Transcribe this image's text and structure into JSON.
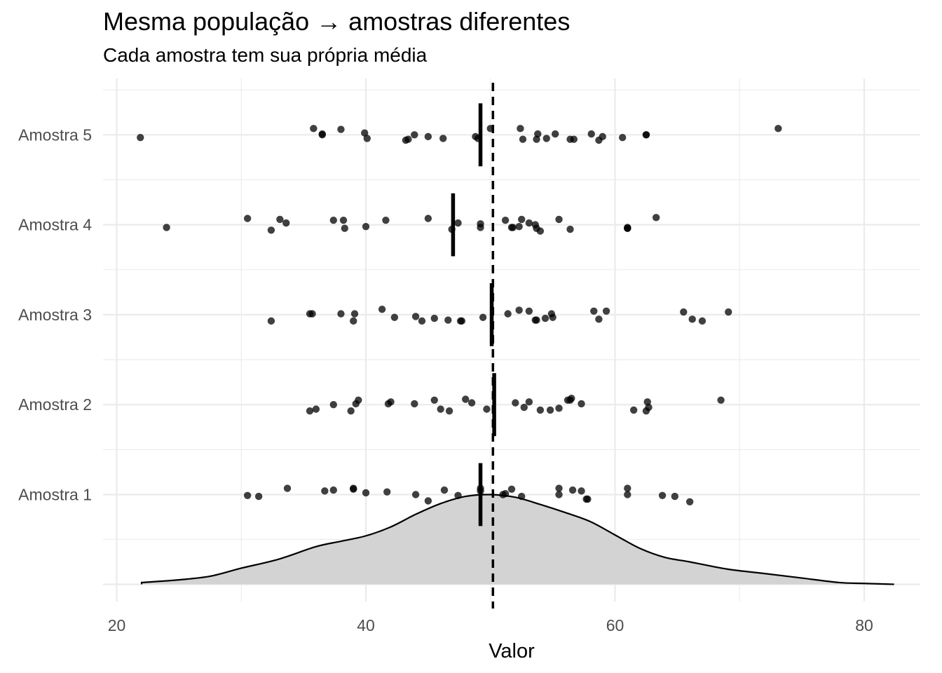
{
  "title": "Mesma população → amostras diferentes",
  "subtitle": "Cada amostra tem sua própria média",
  "chart_data": {
    "type": "scatter",
    "title": "Mesma população → amostras diferentes",
    "subtitle": "Cada amostra tem sua própria média",
    "xlabel": "Valor",
    "ylabel": "",
    "xlim": [
      18.2,
      84.2
    ],
    "x_ticks": [
      20,
      40,
      60,
      80
    ],
    "x_tick_labels": [
      "20",
      "40",
      "60",
      "80"
    ],
    "categories": [
      "Amostra 1",
      "Amostra 2",
      "Amostra 3",
      "Amostra 4",
      "Amostra 5"
    ],
    "grid": true,
    "population_mean": 50.2,
    "point_color": "#000000",
    "point_opacity": 0.75,
    "density_fill": "#d3d3d3",
    "series": [
      {
        "values": [
          30.5,
          31.4,
          33.7,
          36.7,
          37.4,
          39.0,
          39.0,
          40.0,
          41.7,
          44.0,
          45.0,
          46.3,
          47.4,
          49.2,
          49.2,
          51.0,
          51.2,
          51.7,
          52.5,
          55.5,
          55.5,
          56.6,
          57.3,
          57.7,
          57.8,
          61.0,
          61.0,
          63.8,
          64.8,
          66.0
        ],
        "jitter": [
          -0.01,
          -0.02,
          0.07,
          0.04,
          0.05,
          0.07,
          0.06,
          0.02,
          0.03,
          0.0,
          -0.07,
          0.05,
          -0.01,
          0.07,
          0.04,
          0.0,
          0.01,
          0.06,
          -0.02,
          0.07,
          0.0,
          0.05,
          0.04,
          -0.05,
          -0.05,
          0.07,
          0.0,
          -0.01,
          -0.02,
          -0.08
        ],
        "mean": 49.2
      },
      {
        "values": [
          35.5,
          36.0,
          37.4,
          38.8,
          39.2,
          39.4,
          41.8,
          42.0,
          43.9,
          45.5,
          46.0,
          46.7,
          48.0,
          48.5,
          49.7,
          52.0,
          52.7,
          53.1,
          54.0,
          54.8,
          55.5,
          56.2,
          56.4,
          56.5,
          57.3,
          61.5,
          62.5,
          62.6,
          62.7,
          68.5
        ],
        "jitter": [
          -0.07,
          -0.05,
          0.0,
          -0.07,
          0.01,
          0.05,
          0.01,
          0.03,
          0.01,
          0.05,
          -0.05,
          -0.07,
          0.06,
          0.02,
          -0.05,
          0.02,
          -0.03,
          0.03,
          -0.06,
          -0.06,
          -0.04,
          0.05,
          0.05,
          0.07,
          0.01,
          -0.06,
          -0.07,
          0.03,
          -0.03,
          0.05
        ],
        "mean": 50.3
      },
      {
        "values": [
          32.4,
          35.5,
          35.7,
          38.0,
          39.0,
          39.1,
          41.3,
          42.3,
          44.0,
          44.5,
          45.5,
          46.6,
          47.6,
          47.7,
          49.4,
          51.4,
          52.3,
          53.1,
          53.6,
          53.7,
          54.4,
          54.9,
          55.0,
          58.3,
          58.7,
          59.3,
          65.5,
          66.2,
          67.0,
          69.1
        ],
        "jitter": [
          -0.07,
          0.01,
          0.01,
          0.01,
          -0.07,
          0.01,
          0.06,
          -0.03,
          -0.02,
          -0.07,
          -0.04,
          -0.06,
          -0.07,
          -0.07,
          -0.03,
          0.01,
          0.05,
          0.04,
          -0.06,
          -0.06,
          -0.04,
          0.01,
          -0.03,
          0.04,
          -0.05,
          0.04,
          0.03,
          -0.05,
          -0.07,
          0.03
        ],
        "mean": 50.1
      },
      {
        "values": [
          24.0,
          30.5,
          32.4,
          33.1,
          33.6,
          37.4,
          38.2,
          38.3,
          40.0,
          41.6,
          45.0,
          46.9,
          47.4,
          49.2,
          49.2,
          51.2,
          51.7,
          51.8,
          52.3,
          52.5,
          53.1,
          53.6,
          53.7,
          54.0,
          55.5,
          56.4,
          61.0,
          61.0,
          61.0,
          63.3
        ],
        "jitter": [
          -0.03,
          0.07,
          -0.06,
          0.06,
          0.02,
          0.05,
          0.05,
          -0.04,
          -0.02,
          0.05,
          0.07,
          -0.05,
          0.02,
          0.01,
          -0.03,
          0.05,
          -0.03,
          -0.03,
          -0.02,
          0.06,
          0.02,
          0.0,
          -0.04,
          -0.07,
          0.06,
          -0.05,
          -0.03,
          -0.04,
          -0.04,
          0.08
        ],
        "mean": 47.0
      },
      {
        "values": [
          21.9,
          35.8,
          36.5,
          36.5,
          38.0,
          39.9,
          40.1,
          43.2,
          43.4,
          43.9,
          45.0,
          46.2,
          48.8,
          49.0,
          50.0,
          52.4,
          52.6,
          53.7,
          53.8,
          54.5,
          55.2,
          56.4,
          56.7,
          58.1,
          58.7,
          59.0,
          60.6,
          62.5,
          73.1,
          62.5
        ],
        "jitter": [
          -0.03,
          0.07,
          0.01,
          0.0,
          0.06,
          0.02,
          -0.04,
          -0.06,
          -0.05,
          0.0,
          -0.02,
          -0.04,
          -0.02,
          -0.04,
          0.07,
          0.07,
          -0.05,
          -0.05,
          0.01,
          -0.04,
          0.01,
          -0.05,
          -0.05,
          0.01,
          -0.06,
          -0.02,
          -0.03,
          0.0,
          0.07,
          0.0
        ],
        "mean": 49.2
      }
    ],
    "density": {
      "x": [
        22.0,
        25.0,
        27.5,
        30.0,
        33.0,
        36.0,
        38.0,
        40.0,
        42.0,
        44.0,
        46.0,
        48.0,
        50.0,
        52.0,
        54.0,
        56.0,
        58.0,
        60.0,
        62.0,
        64.0,
        66.0,
        69.0,
        72.0,
        75.0,
        78.0,
        80.0,
        82.4
      ],
      "y": [
        0.02,
        0.05,
        0.09,
        0.18,
        0.28,
        0.42,
        0.48,
        0.54,
        0.64,
        0.78,
        0.9,
        0.98,
        1.0,
        0.97,
        0.89,
        0.8,
        0.7,
        0.55,
        0.4,
        0.3,
        0.25,
        0.17,
        0.12,
        0.07,
        0.02,
        0.01,
        0.0
      ]
    }
  }
}
